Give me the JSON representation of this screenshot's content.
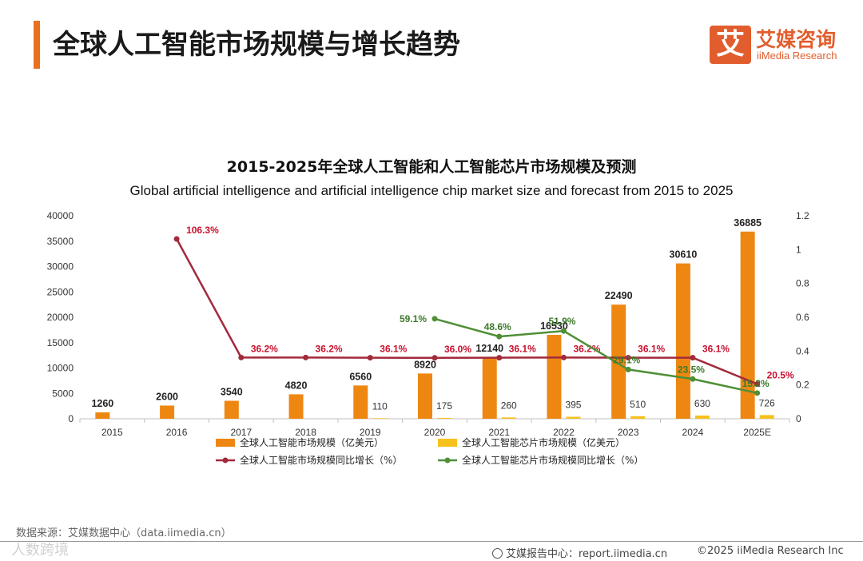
{
  "header": {
    "title": "全球人工智能市场规模与增长趋势",
    "logo_mark": "艾",
    "logo_cn": "艾媒咨询",
    "logo_en": "iiMedia Research"
  },
  "chart_data": {
    "type": "bar",
    "title": "2015-2025年全球人工智能和人工智能芯片市场规模及预测",
    "subtitle": "Global artificial intelligence and artificial intelligence chip market size and forecast from 2015 to 2025",
    "categories": [
      "2015",
      "2016",
      "2017",
      "2018",
      "2019",
      "2020",
      "2021",
      "2022",
      "2023",
      "2024",
      "2025E"
    ],
    "left_axis": {
      "ylim": [
        0,
        40000
      ],
      "ticks": [
        0,
        5000,
        10000,
        15000,
        20000,
        25000,
        30000,
        35000,
        40000
      ]
    },
    "right_axis": {
      "ylim": [
        0,
        1.2
      ],
      "ticks": [
        "0",
        "0.2",
        "0.4",
        "0.6",
        "0.8",
        "1",
        "1.2"
      ]
    },
    "bar_series": [
      {
        "name": "全球人工智能市场规模（亿美元）",
        "color": "#ee8712",
        "values": [
          1260,
          2600,
          3540,
          4820,
          6560,
          8920,
          12140,
          16530,
          22490,
          30610,
          36885
        ],
        "labels": [
          "1260",
          "2600",
          "3540",
          "4820",
          "6560",
          "8920",
          "12140",
          "16530",
          "22490",
          "30610",
          "36885"
        ]
      },
      {
        "name": "全球人工智能芯片市场规模（亿美元）",
        "color": "#f7c11b",
        "values": [
          null,
          null,
          null,
          null,
          110,
          175,
          260,
          395,
          510,
          630,
          726
        ],
        "labels": [
          "",
          "",
          "",
          "",
          "110",
          "175",
          "260",
          "395",
          "510",
          "630",
          "726"
        ]
      }
    ],
    "line_series": [
      {
        "name": "全球人工智能市场规模同比增长（%）",
        "color": "#a22a3c",
        "label_color": "#c8102e",
        "values": [
          null,
          1.063,
          0.362,
          0.362,
          0.361,
          0.36,
          0.361,
          0.362,
          0.361,
          0.361,
          0.205
        ],
        "labels": [
          "",
          "106.3%",
          "36.2%",
          "36.2%",
          "36.1%",
          "36.0%",
          "36.1%",
          "36.2%",
          "36.1%",
          "36.1%",
          "20.5%"
        ]
      },
      {
        "name": "全球人工智能芯片市场规模同比增长（%）",
        "color": "#4f8f36",
        "label_color": "#3d7a2a",
        "values": [
          null,
          null,
          null,
          null,
          null,
          0.591,
          0.486,
          0.519,
          0.291,
          0.235,
          0.152
        ],
        "labels": [
          "",
          "",
          "",
          "",
          "",
          "59.1%",
          "48.6%",
          "51.9%",
          "29.1%",
          "23.5%",
          "15.2%"
        ]
      }
    ],
    "legend_position": "bottom",
    "grid": false
  },
  "footer": {
    "source": "数据来源：艾媒数据中心（data.iimedia.cn）",
    "watermark": "人数跨境",
    "report_center": "艾媒报告中心：report.iimedia.cn",
    "copyright": "©2025  iiMedia Research  Inc"
  }
}
